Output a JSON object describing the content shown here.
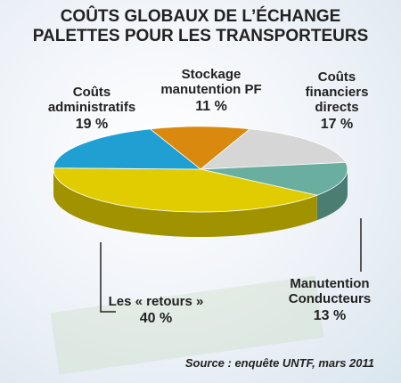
{
  "chart_data": {
    "type": "pie",
    "title": "COÛTS GLOBAUX DE L’ÉCHANGE PALETTES POUR LES TRANSPORTEURS",
    "categories": [
      "Stockage manutention PF",
      "Coûts financiers directs",
      "Manutention Conducteurs",
      "Les « retours »",
      "Coûts administratifs"
    ],
    "values": [
      11,
      17,
      13,
      40,
      19
    ],
    "value_labels": [
      "11 %",
      "17 %",
      "13 %",
      "40 %",
      "19 %"
    ],
    "colors": [
      "#d98a0e",
      "#d6d6d6",
      "#6aaea0",
      "#e0cc00",
      "#1f9fd2"
    ],
    "source": "Source : enquête UNTF, mars 2011"
  }
}
